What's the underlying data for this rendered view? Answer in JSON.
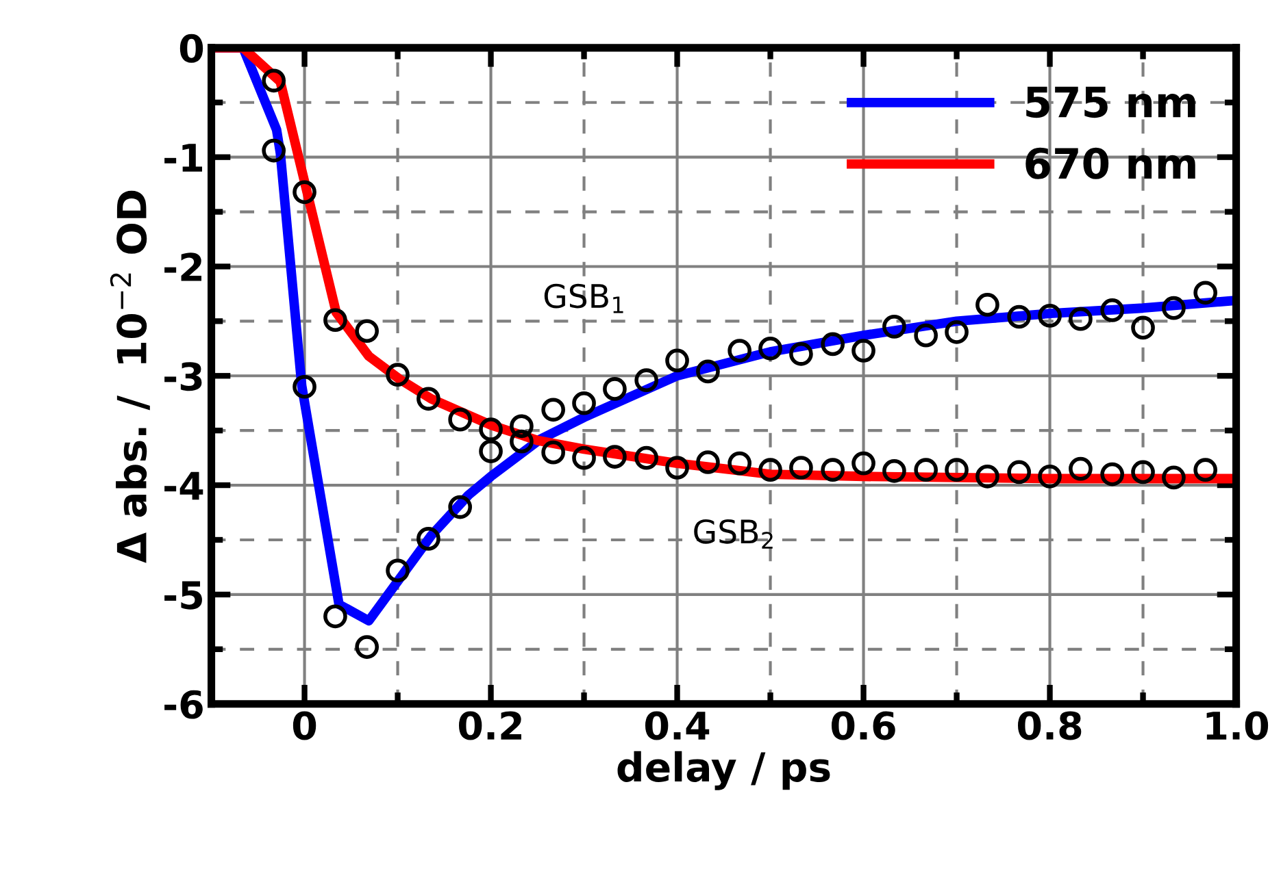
{
  "chart_data": {
    "type": "line",
    "xlabel": "delay / ps",
    "ylabel": "Δ abs. /  10$^{−2}$ OD",
    "xlim": [
      -0.1,
      1.0
    ],
    "ylim": [
      -6,
      0
    ],
    "xticks": [
      {
        "value": -0.1,
        "label": null
      },
      {
        "value": 0,
        "label": "0"
      },
      {
        "value": 0.1,
        "label": null
      },
      {
        "value": 0.2,
        "label": "0.2"
      },
      {
        "value": 0.3,
        "label": null
      },
      {
        "value": 0.4,
        "label": "0.4"
      },
      {
        "value": 0.5,
        "label": null
      },
      {
        "value": 0.6,
        "label": "0.6"
      },
      {
        "value": 0.7,
        "label": null
      },
      {
        "value": 0.8,
        "label": "0.8"
      },
      {
        "value": 0.9,
        "label": null
      },
      {
        "value": 1.0,
        "label": "1.0"
      }
    ],
    "yticks": [
      {
        "value": -6,
        "label": "-6"
      },
      {
        "value": -5.5,
        "label": null
      },
      {
        "value": -5,
        "label": "-5"
      },
      {
        "value": -4.5,
        "label": null
      },
      {
        "value": -4,
        "label": "-4"
      },
      {
        "value": -3.5,
        "label": null
      },
      {
        "value": -3,
        "label": "-3"
      },
      {
        "value": -2.5,
        "label": null
      },
      {
        "value": -2,
        "label": "-2"
      },
      {
        "value": -1.5,
        "label": null
      },
      {
        "value": -1,
        "label": "-1"
      },
      {
        "value": -0.5,
        "label": null
      },
      {
        "value": 0,
        "label": "0"
      }
    ],
    "grid": true,
    "legend": "top right",
    "annotations": [
      "GSB$_{1}$",
      "GSB$_{2}$"
    ],
    "series": [
      {
        "type": "scatter",
        "color": "#000000",
        "marker": "circle",
        "x": [
          -0.033,
          0,
          0.033,
          0.067,
          0.1,
          0.133,
          0.167,
          0.2,
          0.233,
          0.267,
          0.3,
          0.333,
          0.367,
          0.4,
          0.433,
          0.467,
          0.5,
          0.533,
          0.567,
          0.6,
          0.633,
          0.667,
          0.7,
          0.733,
          0.767,
          0.8,
          0.833,
          0.867,
          0.9,
          0.933,
          0.967
        ],
        "values": [
          -0.94,
          -3.1,
          -5.2,
          -5.48,
          -4.78,
          -4.49,
          -4.2,
          -3.69,
          -3.46,
          -3.31,
          -3.25,
          -3.12,
          -3.04,
          -2.86,
          -2.96,
          -2.77,
          -2.75,
          -2.8,
          -2.71,
          -2.77,
          -2.55,
          -2.63,
          -2.6,
          -2.35,
          -2.46,
          -2.45,
          -2.48,
          -2.4,
          -2.56,
          -2.38,
          -2.24
        ]
      },
      {
        "type": "scatter",
        "color": "#000000",
        "marker": "circle",
        "x": [
          -0.033,
          0,
          0.033,
          0.067,
          0.1,
          0.133,
          0.167,
          0.2,
          0.233,
          0.267,
          0.3,
          0.333,
          0.367,
          0.4,
          0.433,
          0.467,
          0.5,
          0.533,
          0.567,
          0.6,
          0.633,
          0.667,
          0.7,
          0.733,
          0.767,
          0.8,
          0.833,
          0.867,
          0.9,
          0.933,
          0.967
        ],
        "values": [
          -0.3,
          -1.32,
          -2.49,
          -2.59,
          -2.99,
          -3.21,
          -3.4,
          -3.49,
          -3.6,
          -3.7,
          -3.75,
          -3.74,
          -3.75,
          -3.84,
          -3.79,
          -3.8,
          -3.86,
          -3.84,
          -3.86,
          -3.8,
          -3.87,
          -3.86,
          -3.86,
          -3.92,
          -3.88,
          -3.92,
          -3.85,
          -3.9,
          -3.88,
          -3.93,
          -3.86
        ]
      },
      {
        "name": "575 nm",
        "color": "#0000ff",
        "x": [
          -0.1,
          -0.066,
          -0.03,
          -0.026,
          -0.003,
          0.037,
          0.069,
          0.136,
          0.176,
          0.2,
          0.253,
          0.3,
          0.4,
          0.5,
          0.6,
          0.7,
          0.8,
          0.9,
          1.0
        ],
        "values": [
          0,
          0,
          -0.75,
          -0.96,
          -3.09,
          -5.09,
          -5.24,
          -4.46,
          -4.09,
          -3.92,
          -3.58,
          -3.38,
          -3.0,
          -2.78,
          -2.63,
          -2.5,
          -2.43,
          -2.38,
          -2.31
        ]
      },
      {
        "name": "670 nm",
        "color": "#ff0000",
        "x": [
          -0.1,
          -0.066,
          -0.026,
          0.034,
          0.069,
          0.102,
          0.136,
          0.2,
          0.25,
          0.3,
          0.4,
          0.5,
          0.6,
          0.8,
          1.0
        ],
        "values": [
          0,
          0,
          -0.31,
          -2.42,
          -2.82,
          -3.03,
          -3.21,
          -3.45,
          -3.59,
          -3.67,
          -3.8,
          -3.9,
          -3.92,
          -3.94,
          -3.94
        ]
      }
    ]
  }
}
